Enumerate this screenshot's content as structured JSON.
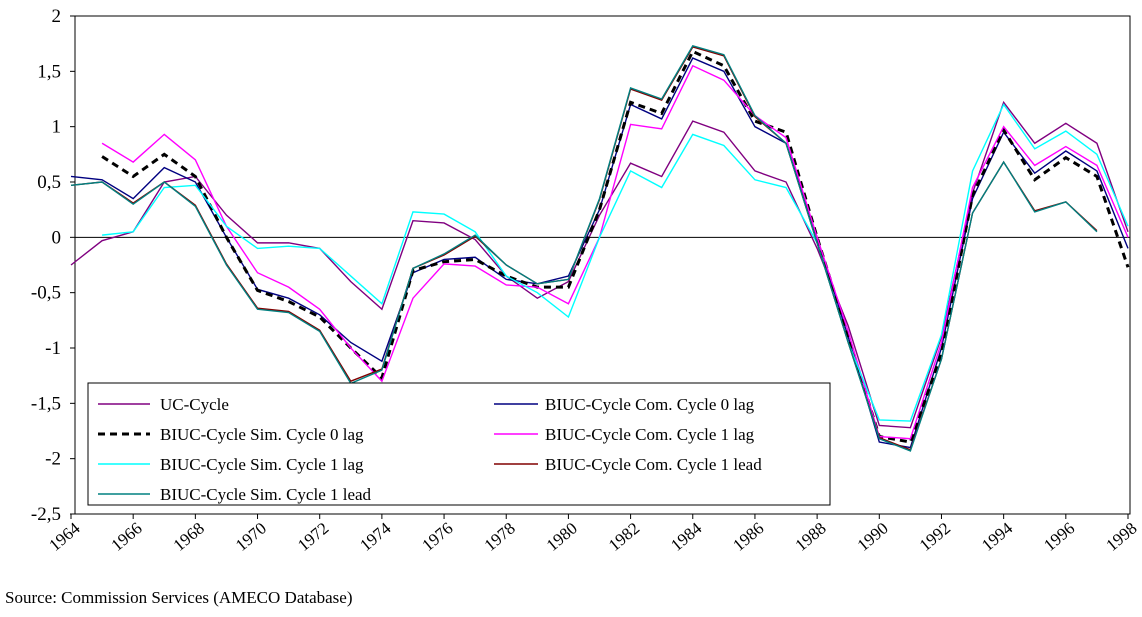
{
  "chart_data": {
    "type": "line",
    "x": [
      1964,
      1965,
      1966,
      1967,
      1968,
      1969,
      1970,
      1971,
      1972,
      1973,
      1974,
      1975,
      1976,
      1977,
      1978,
      1979,
      1980,
      1981,
      1982,
      1983,
      1984,
      1985,
      1986,
      1987,
      1988,
      1989,
      1990,
      1991,
      1992,
      1993,
      1994,
      1995,
      1996,
      1997,
      1998
    ],
    "xlim": [
      1964,
      1998
    ],
    "xticks": [
      1964,
      1966,
      1968,
      1970,
      1972,
      1974,
      1976,
      1978,
      1980,
      1982,
      1984,
      1986,
      1988,
      1990,
      1992,
      1994,
      1996,
      1998
    ],
    "ylim": [
      -2.5,
      2
    ],
    "yticks": [
      {
        "value": -2.5,
        "label": "-2,5"
      },
      -2,
      {
        "value": -1.5,
        "label": "-1,5"
      },
      -1,
      {
        "value": -0.5,
        "label": "-0,5"
      },
      0,
      {
        "value": 0.5,
        "label": "0,5"
      },
      1,
      {
        "value": 1.5,
        "label": "1,5"
      },
      2
    ],
    "legend": "bottom-left",
    "source": "Source: Commission Services (AMECO Database)",
    "series": [
      {
        "name": "UC-Cycle",
        "color": "#800080",
        "dash": false,
        "values": [
          -0.25,
          -0.03,
          0.05,
          0.5,
          0.55,
          0.2,
          -0.05,
          -0.05,
          -0.1,
          -0.4,
          -0.65,
          0.15,
          0.13,
          -0.02,
          -0.35,
          -0.55,
          -0.4,
          0.2,
          0.67,
          0.55,
          1.05,
          0.95,
          0.6,
          0.5,
          -0.1,
          -0.8,
          -1.7,
          -1.72,
          -0.9,
          0.4,
          1.22,
          0.85,
          1.03,
          0.85,
          0.05
        ]
      },
      {
        "name": "BIUC-Cycle Com. Cycle 0 lag",
        "color": "#000080",
        "dash": false,
        "values": [
          0.55,
          0.52,
          0.35,
          0.63,
          0.5,
          0.0,
          -0.47,
          -0.55,
          -0.7,
          -0.95,
          -1.12,
          -0.32,
          -0.2,
          -0.18,
          -0.38,
          -0.42,
          -0.35,
          0.25,
          1.2,
          1.07,
          1.62,
          1.5,
          1.0,
          0.85,
          0.0,
          -0.9,
          -1.85,
          -1.9,
          -1.0,
          0.35,
          0.95,
          0.58,
          0.78,
          0.6,
          -0.1
        ]
      },
      {
        "name": "BIUC-Cycle Sim. Cycle 0 lag",
        "color": "#000000",
        "dash": true,
        "values": [
          null,
          0.73,
          0.55,
          0.75,
          0.55,
          0.0,
          -0.48,
          -0.58,
          -0.72,
          -1.0,
          -1.27,
          -0.3,
          -0.22,
          -0.2,
          -0.35,
          -0.45,
          -0.45,
          0.25,
          1.22,
          1.12,
          1.68,
          1.55,
          1.05,
          0.95,
          0.0,
          -0.9,
          -1.8,
          -1.85,
          -1.05,
          0.38,
          0.97,
          0.52,
          0.72,
          0.55,
          -0.27
        ]
      },
      {
        "name": "BIUC-Cycle Com. Cycle 1 lag",
        "color": "#ff00ff",
        "dash": false,
        "values": [
          null,
          0.85,
          0.68,
          0.93,
          0.7,
          0.1,
          -0.32,
          -0.45,
          -0.65,
          -1.0,
          -1.3,
          -0.55,
          -0.24,
          -0.26,
          -0.43,
          -0.45,
          -0.6,
          0.0,
          1.02,
          0.98,
          1.55,
          1.42,
          1.1,
          0.9,
          0.0,
          -0.85,
          -1.8,
          -1.82,
          -0.95,
          0.45,
          1.0,
          0.65,
          0.82,
          0.65,
          0.0
        ]
      },
      {
        "name": "BIUC-Cycle Sim. Cycle 1 lag",
        "color": "#00ffff",
        "dash": false,
        "values": [
          null,
          0.02,
          0.05,
          0.45,
          0.47,
          0.1,
          -0.1,
          -0.08,
          -0.1,
          -0.35,
          -0.6,
          0.23,
          0.21,
          0.05,
          -0.35,
          -0.5,
          -0.72,
          0.0,
          0.6,
          0.45,
          0.93,
          0.83,
          0.52,
          0.45,
          -0.05,
          -0.95,
          -1.65,
          -1.66,
          -0.88,
          0.6,
          1.2,
          0.8,
          0.96,
          0.75,
          0.1
        ]
      },
      {
        "name": "BIUC-Cycle Com. Cycle 1 lead",
        "color": "#800000",
        "dash": false,
        "values": [
          0.47,
          0.5,
          0.31,
          0.5,
          0.29,
          -0.24,
          -0.64,
          -0.67,
          -0.84,
          -1.3,
          -1.19,
          -0.28,
          -0.16,
          0.01,
          -0.25,
          -0.42,
          -0.38,
          0.34,
          1.34,
          1.24,
          1.72,
          1.64,
          1.09,
          0.85,
          -0.05,
          -0.95,
          -1.81,
          -1.92,
          -1.1,
          0.22,
          0.68,
          0.24,
          0.32,
          0.06,
          null
        ]
      },
      {
        "name": "BIUC-Cycle Sim. Cycle 1 lead",
        "color": "#008080",
        "dash": false,
        "values": [
          0.47,
          0.5,
          0.3,
          0.5,
          0.28,
          -0.25,
          -0.65,
          -0.68,
          -0.85,
          -1.32,
          -1.2,
          -0.28,
          -0.15,
          0.02,
          -0.25,
          -0.42,
          -0.38,
          0.35,
          1.35,
          1.25,
          1.73,
          1.65,
          1.1,
          0.85,
          -0.05,
          -0.95,
          -1.82,
          -1.93,
          -1.1,
          0.22,
          0.68,
          0.23,
          0.32,
          0.05,
          null
        ]
      }
    ]
  }
}
